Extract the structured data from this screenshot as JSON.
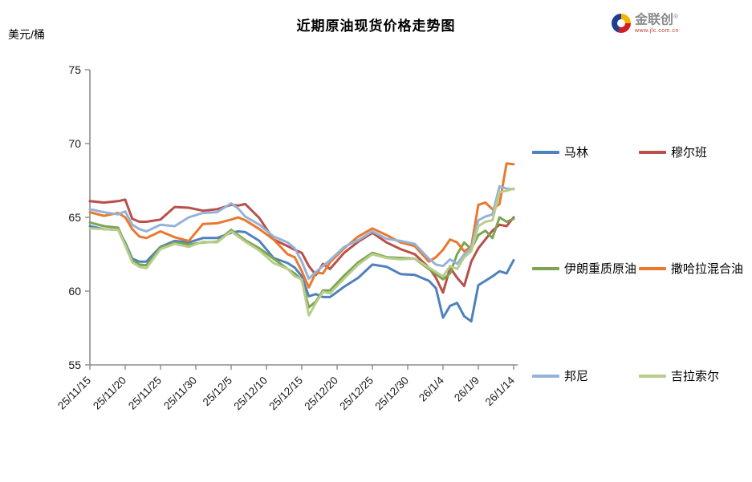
{
  "title": "近期原油现货价格走势图",
  "unit_label": "美元/桶",
  "logo": {
    "name": "金联创",
    "registered": "®",
    "subtext": "www.jlc.com.cn"
  },
  "chart_data": {
    "type": "line",
    "title": "近期原油现货价格走势图",
    "ylabel": "美元/桶",
    "ylim": [
      55,
      75
    ],
    "yticks": [
      55,
      60,
      65,
      70,
      75
    ],
    "grid": false,
    "legend_position": "right",
    "axis_color": "#8c8c8c",
    "tick_text_color": "#1a1a1a",
    "x_tick_days": [
      0,
      5,
      10,
      15,
      20,
      25,
      30,
      35,
      40,
      45,
      50,
      55,
      60
    ],
    "x_tick_labels": [
      "25/11/15",
      "25/11/20",
      "25/11/25",
      "25/11/30",
      "25/12/5",
      "25/12/10",
      "25/12/15",
      "25/12/20",
      "25/12/25",
      "25/12/30",
      "26/1/4",
      "26/1/9",
      "26/1/14"
    ],
    "x_days": [
      0,
      2,
      4,
      5,
      6,
      7,
      8,
      10,
      12,
      14,
      16,
      18,
      20,
      21,
      22,
      24,
      26,
      28,
      29,
      30,
      31,
      32,
      33,
      34,
      36,
      38,
      40,
      42,
      44,
      46,
      48,
      49,
      50,
      51,
      52,
      53,
      54,
      55,
      56,
      57,
      58,
      59,
      60
    ],
    "series": [
      {
        "name": "马林",
        "color": "#4F81BD",
        "values": [
          64.4,
          64.2,
          64.15,
          63.3,
          62.2,
          62.0,
          62.0,
          63.0,
          63.4,
          63.3,
          63.6,
          63.6,
          63.95,
          64.05,
          64.0,
          63.4,
          62.25,
          61.9,
          61.6,
          61.0,
          59.65,
          59.8,
          59.6,
          59.6,
          60.3,
          60.9,
          61.8,
          61.65,
          61.15,
          61.1,
          60.7,
          60.2,
          58.2,
          59.0,
          59.2,
          58.3,
          57.95,
          60.4,
          60.7,
          61.0,
          61.35,
          61.2,
          62.1
        ]
      },
      {
        "name": "穆尔班",
        "color": "#B8504B",
        "values": [
          66.1,
          66.0,
          66.1,
          66.2,
          64.9,
          64.7,
          64.7,
          64.85,
          65.7,
          65.65,
          65.45,
          65.55,
          65.85,
          65.8,
          65.9,
          64.95,
          63.5,
          63.05,
          62.8,
          62.6,
          61.7,
          61.1,
          61.85,
          61.5,
          62.6,
          63.35,
          63.95,
          63.3,
          62.85,
          62.5,
          61.6,
          60.9,
          59.9,
          61.6,
          60.9,
          60.35,
          62.0,
          62.9,
          63.5,
          64.1,
          64.5,
          64.4,
          65.0
        ]
      },
      {
        "name": "伊朗重质原油",
        "color": "#7DA450",
        "values": [
          64.65,
          64.4,
          64.3,
          63.2,
          62.1,
          61.8,
          61.75,
          62.95,
          63.3,
          63.15,
          63.3,
          63.35,
          64.15,
          63.8,
          63.45,
          62.9,
          62.2,
          61.5,
          61.2,
          60.75,
          58.9,
          59.3,
          60.05,
          60.05,
          61.05,
          61.95,
          62.6,
          62.3,
          62.25,
          62.2,
          61.5,
          61.15,
          60.8,
          61.2,
          62.5,
          63.3,
          62.85,
          63.8,
          64.1,
          63.6,
          65.0,
          64.7,
          64.9
        ]
      },
      {
        "name": "撒哈拉混合油",
        "color": "#E8792E",
        "values": [
          65.35,
          65.1,
          65.3,
          65.0,
          64.2,
          63.7,
          63.6,
          64.05,
          63.65,
          63.4,
          64.55,
          64.6,
          64.85,
          65.0,
          64.8,
          64.2,
          63.5,
          62.5,
          62.3,
          61.35,
          60.25,
          61.25,
          61.2,
          61.95,
          62.9,
          63.7,
          64.25,
          63.8,
          63.3,
          63.05,
          62.0,
          62.3,
          62.8,
          63.5,
          63.3,
          62.7,
          63.0,
          65.85,
          66.0,
          65.55,
          65.9,
          68.65,
          68.6
        ]
      },
      {
        "name": "邦尼",
        "color": "#95B3D7",
        "values": [
          65.55,
          65.35,
          65.2,
          65.4,
          64.5,
          64.2,
          64.05,
          64.5,
          64.4,
          65.0,
          65.3,
          65.35,
          65.95,
          65.6,
          65.05,
          64.5,
          63.7,
          63.3,
          62.9,
          62.0,
          60.85,
          61.3,
          61.7,
          62.1,
          63.0,
          63.45,
          64.05,
          63.55,
          63.4,
          63.2,
          62.2,
          61.8,
          61.7,
          62.15,
          61.85,
          62.5,
          62.9,
          64.8,
          65.05,
          65.2,
          67.1,
          66.95,
          66.9
        ]
      },
      {
        "name": "吉拉索尔",
        "color": "#B9CD8D",
        "values": [
          64.25,
          64.2,
          64.15,
          63.1,
          61.95,
          61.65,
          61.55,
          62.85,
          63.2,
          63.0,
          63.35,
          63.3,
          64.05,
          63.7,
          63.35,
          62.75,
          61.9,
          61.5,
          61.0,
          60.8,
          58.35,
          59.2,
          59.95,
          59.85,
          60.85,
          61.8,
          62.5,
          62.25,
          62.15,
          62.2,
          61.6,
          61.3,
          61.0,
          61.7,
          61.5,
          62.3,
          62.7,
          64.4,
          64.7,
          64.8,
          66.7,
          66.8,
          66.95
        ]
      }
    ],
    "legend_rows": [
      [
        0,
        1
      ],
      [
        2,
        3
      ],
      [
        4,
        5
      ]
    ]
  }
}
